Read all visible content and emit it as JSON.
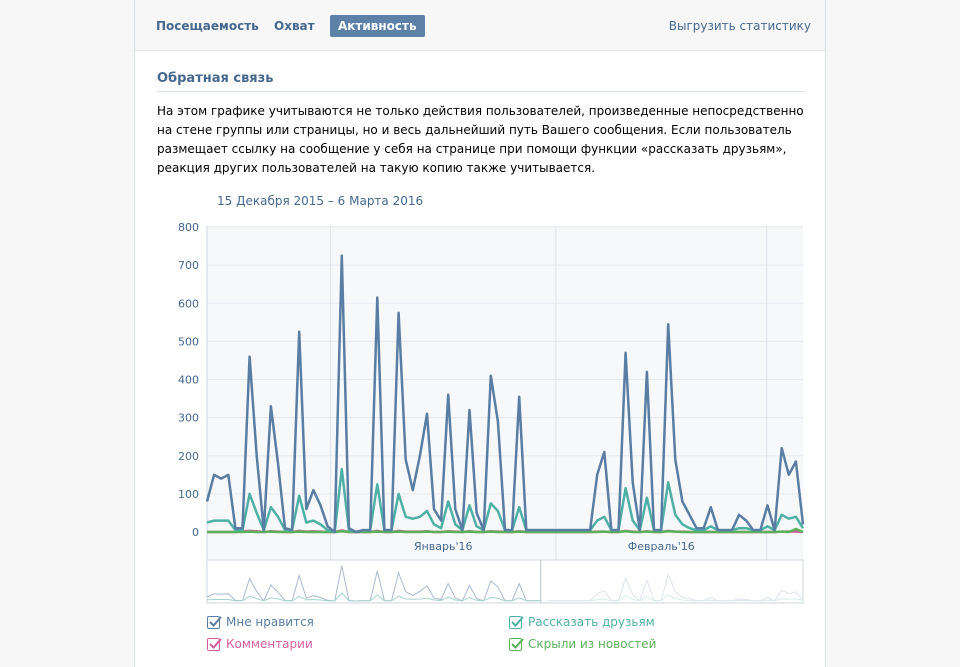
{
  "tabs": [
    {
      "label": "Посещаемость",
      "active": false
    },
    {
      "label": "Охват",
      "active": false
    },
    {
      "label": "Активность",
      "active": true
    }
  ],
  "export_label": "Выгрузить статистику",
  "section": {
    "title": "Обратная связь",
    "description": "На этом графике учитываются не только действия пользователей, произведенные непосредственно на стене группы или страницы, но и весь дальнейший путь Вашего сообщения. Если пользователь размещает ссылку на сообщение у себя на странице при помощи функции «рассказать друзьям», реакция других пользователей на такую копию также учитывается."
  },
  "chart_data": {
    "type": "line",
    "date_range": "15 Декабря 2015 – 6 Марта 2016",
    "ylim": [
      0,
      800
    ],
    "yticks": [
      0,
      100,
      200,
      300,
      400,
      500,
      600,
      700,
      800
    ],
    "x_start": "2015-12-15",
    "x_end": "2016-03-06",
    "xticks": [
      "Январь'16",
      "Февраль'16"
    ],
    "grid": true,
    "series": [
      {
        "name": "Мне нравится",
        "color": "#597da3",
        "values": [
          80,
          150,
          140,
          150,
          10,
          10,
          460,
          200,
          5,
          330,
          180,
          10,
          5,
          525,
          60,
          110,
          70,
          15,
          0,
          725,
          10,
          0,
          5,
          5,
          615,
          5,
          5,
          575,
          190,
          110,
          200,
          310,
          60,
          30,
          360,
          60,
          5,
          320,
          50,
          5,
          410,
          290,
          5,
          5,
          355,
          5,
          5,
          5,
          5,
          5,
          5,
          5,
          5,
          5,
          5,
          150,
          210,
          5,
          5,
          470,
          130,
          5,
          420,
          5,
          5,
          545,
          190,
          80,
          45,
          10,
          10,
          65,
          5,
          5,
          5,
          45,
          30,
          5,
          5,
          70,
          5,
          220,
          150,
          185,
          20
        ]
      },
      {
        "name": "Рассказать друзьям",
        "color": "#4eb0a5",
        "values": [
          25,
          30,
          30,
          30,
          5,
          5,
          100,
          50,
          5,
          65,
          40,
          5,
          5,
          95,
          25,
          30,
          20,
          5,
          0,
          165,
          5,
          0,
          5,
          5,
          125,
          5,
          5,
          100,
          40,
          35,
          40,
          55,
          20,
          10,
          80,
          20,
          5,
          70,
          15,
          5,
          75,
          55,
          5,
          5,
          65,
          5,
          5,
          5,
          5,
          5,
          5,
          5,
          5,
          5,
          5,
          30,
          40,
          5,
          5,
          115,
          30,
          5,
          90,
          5,
          5,
          130,
          45,
          20,
          10,
          5,
          5,
          15,
          5,
          5,
          5,
          10,
          10,
          5,
          5,
          15,
          5,
          45,
          35,
          40,
          10
        ]
      },
      {
        "name": "Комментарии",
        "color": "#d55e9e",
        "values": [
          0,
          0,
          0,
          0,
          0,
          2,
          3,
          2,
          0,
          2,
          1,
          0,
          0,
          3,
          1,
          2,
          1,
          0,
          0,
          4,
          0,
          0,
          0,
          0,
          3,
          0,
          0,
          3,
          1,
          1,
          1,
          2,
          0,
          0,
          2,
          1,
          0,
          2,
          0,
          0,
          2,
          1,
          0,
          0,
          2,
          0,
          0,
          0,
          0,
          0,
          0,
          0,
          0,
          0,
          0,
          1,
          1,
          0,
          0,
          3,
          1,
          0,
          2,
          0,
          0,
          3,
          1,
          1,
          0,
          0,
          0,
          0,
          0,
          0,
          0,
          0,
          0,
          0,
          0,
          0,
          0,
          1,
          1,
          1,
          0
        ]
      },
      {
        "name": "Скрыли из новостей",
        "color": "#5ab15a",
        "values": [
          0,
          0,
          0,
          0,
          0,
          0,
          1,
          0,
          0,
          1,
          0,
          0,
          0,
          1,
          0,
          0,
          0,
          0,
          0,
          2,
          0,
          0,
          0,
          0,
          1,
          0,
          0,
          1,
          0,
          0,
          0,
          1,
          0,
          0,
          1,
          0,
          0,
          1,
          0,
          0,
          1,
          0,
          0,
          0,
          1,
          0,
          0,
          0,
          0,
          0,
          0,
          0,
          0,
          0,
          0,
          0,
          1,
          0,
          0,
          2,
          0,
          0,
          1,
          0,
          0,
          2,
          1,
          0,
          0,
          0,
          0,
          0,
          0,
          0,
          0,
          0,
          0,
          0,
          0,
          0,
          0,
          1,
          0,
          8,
          0
        ]
      }
    ]
  },
  "legend": [
    {
      "label": "Мне нравится",
      "color": "#597da3",
      "checked": true
    },
    {
      "label": "Комментарии",
      "color": "#d55e9e",
      "checked": true
    },
    {
      "label": "Рассказать друзьям",
      "color": "#4eb0a5",
      "checked": true
    },
    {
      "label": "Скрыли из новостей",
      "color": "#5ab15a",
      "checked": true
    }
  ]
}
